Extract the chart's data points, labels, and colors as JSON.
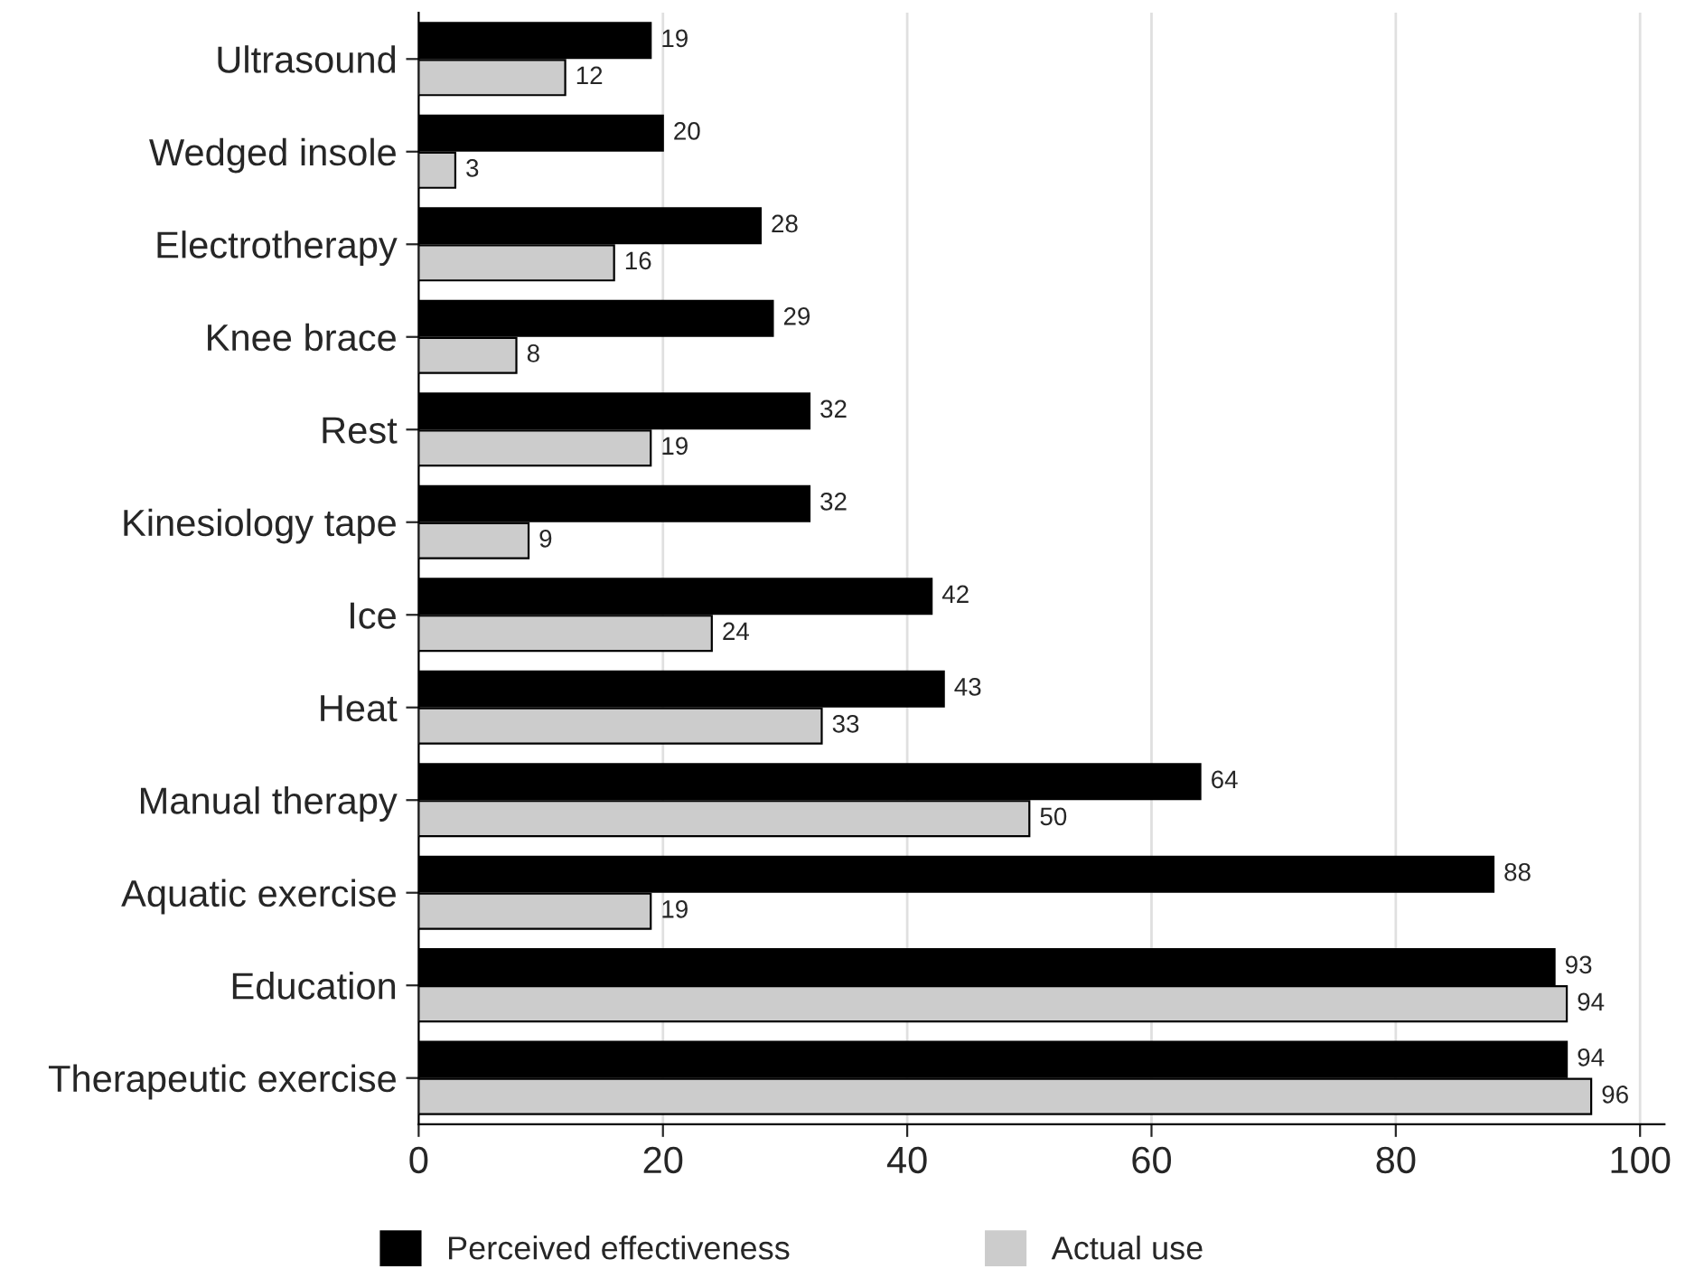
{
  "chart_data": {
    "type": "bar",
    "orientation": "horizontal",
    "categories": [
      "Ultrasound",
      "Wedged insole",
      "Electrotherapy",
      "Knee brace",
      "Rest",
      "Kinesiology tape",
      "Ice",
      "Heat",
      "Manual therapy",
      "Aquatic exercise",
      "Education",
      "Therapeutic exercise"
    ],
    "series": [
      {
        "name": "Perceived effectiveness",
        "color": "#000000",
        "values": [
          19,
          20,
          28,
          29,
          32,
          32,
          42,
          43,
          64,
          88,
          93,
          94
        ]
      },
      {
        "name": "Actual use",
        "color": "#cccccc",
        "values": [
          12,
          3,
          16,
          8,
          19,
          9,
          24,
          33,
          50,
          19,
          94,
          96
        ]
      }
    ],
    "xlim": [
      0,
      102
    ],
    "xticks": [
      0,
      20,
      40,
      60,
      80,
      100
    ],
    "grid": "x",
    "legend": "bottom",
    "data_labels": true
  }
}
